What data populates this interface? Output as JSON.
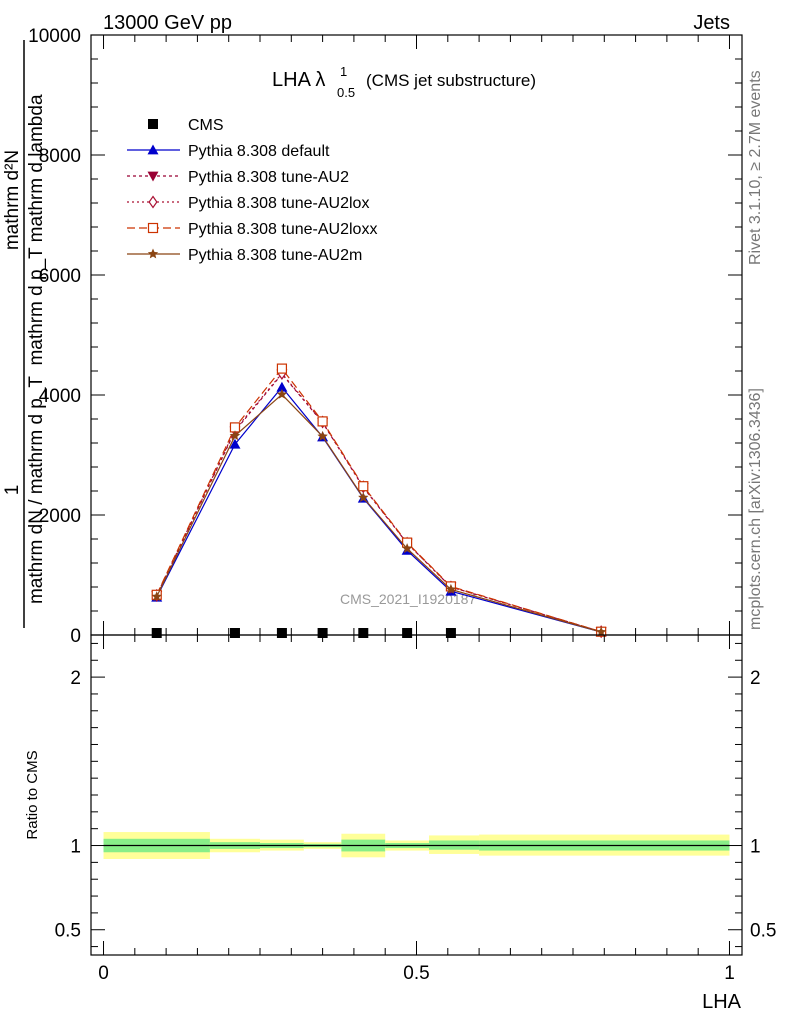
{
  "header": {
    "left": "13000 GeV pp",
    "right": "Jets"
  },
  "side_text": {
    "rivet": "Rivet 3.1.10, ≥ 2.7M events",
    "mcplots": "mcplots.cern.ch [arXiv:1306.3436]"
  },
  "upper_ylabel": {
    "numerator": "mathrm d²N",
    "denominator": "mathrm d p_T mathrm d lambda",
    "prefix_num": "1",
    "prefix_den": "mathrm dN / mathrm d p_T"
  },
  "watermark": "CMS_2021_I1920187",
  "title": {
    "main": "LHA λ",
    "sup": "1",
    "sub": "0.5",
    "suffix": "(CMS jet substructure)"
  },
  "ratio_ylabel": "Ratio to CMS",
  "xlabel": "LHA",
  "chart_data": [
    {
      "type": "line",
      "panel": "main",
      "xlim": [
        -0.02,
        1.02
      ],
      "ylim": [
        0,
        10000
      ],
      "yticks": [
        0,
        2000,
        4000,
        6000,
        8000,
        10000
      ],
      "ytick_labels": [
        "0",
        "2000",
        "4000",
        "6000",
        "8000",
        "10000"
      ],
      "legend_position": "top-left",
      "series": [
        {
          "name": "CMS",
          "style": "data",
          "x": [
            0.085,
            0.21,
            0.285,
            0.35,
            0.415,
            0.485,
            0.555
          ],
          "y": [
            0,
            0,
            0,
            0,
            0,
            0,
            0
          ]
        },
        {
          "name": "Pythia 8.308 default",
          "color": "#0000cc",
          "dash": "",
          "marker": "triangle-up",
          "x": [
            0.085,
            0.21,
            0.285,
            0.35,
            0.415,
            0.485,
            0.555,
            0.795
          ],
          "y": [
            630,
            3180,
            4130,
            3300,
            2280,
            1410,
            730,
            50
          ]
        },
        {
          "name": "Pythia 8.308 tune-AU2",
          "color": "#990033",
          "dash": "3,3",
          "marker": "triangle-down",
          "x": [
            0.085,
            0.21,
            0.285,
            0.35,
            0.415,
            0.485,
            0.555,
            0.795
          ],
          "y": [
            660,
            3400,
            4350,
            3540,
            2460,
            1530,
            800,
            55
          ]
        },
        {
          "name": "Pythia 8.308 tune-AU2lox",
          "color": "#aa1133",
          "dash": "2,3",
          "marker": "diamond",
          "x": [
            0.085,
            0.21,
            0.285,
            0.35,
            0.415,
            0.485,
            0.555,
            0.795
          ],
          "y": [
            660,
            3420,
            4360,
            3550,
            2470,
            1530,
            800,
            55
          ]
        },
        {
          "name": "Pythia 8.308 tune-AU2loxx",
          "color": "#cc3300",
          "dash": "8,4",
          "marker": "square-open",
          "x": [
            0.085,
            0.21,
            0.285,
            0.35,
            0.415,
            0.485,
            0.555,
            0.795
          ],
          "y": [
            670,
            3460,
            4440,
            3560,
            2480,
            1540,
            810,
            55
          ]
        },
        {
          "name": "Pythia 8.308 tune-AU2m",
          "color": "#8b4513",
          "dash": "",
          "marker": "star",
          "x": [
            0.085,
            0.21,
            0.285,
            0.35,
            0.415,
            0.485,
            0.555,
            0.795
          ],
          "y": [
            640,
            3320,
            4010,
            3310,
            2290,
            1440,
            760,
            50
          ]
        }
      ]
    },
    {
      "type": "area",
      "panel": "ratio",
      "xlim": [
        -0.02,
        1.02
      ],
      "ylim": [
        0.35,
        2.25
      ],
      "yticks": [
        0.5,
        1,
        2
      ],
      "ytick_labels": [
        "0.5",
        "1",
        "2"
      ],
      "xticks": [
        0,
        0.5,
        1
      ],
      "xtick_labels": [
        "0",
        "0.5",
        "1"
      ],
      "reference_line": 1,
      "bands": [
        {
          "x0": 0.0,
          "x1": 0.17,
          "yellow": [
            0.92,
            1.08
          ],
          "green": [
            0.96,
            1.04
          ]
        },
        {
          "x0": 0.17,
          "x1": 0.25,
          "yellow": [
            0.96,
            1.04
          ],
          "green": [
            0.98,
            1.02
          ]
        },
        {
          "x0": 0.25,
          "x1": 0.32,
          "yellow": [
            0.97,
            1.035
          ],
          "green": [
            0.985,
            1.015
          ]
        },
        {
          "x0": 0.32,
          "x1": 0.38,
          "yellow": [
            0.98,
            1.02
          ],
          "green": [
            0.99,
            1.01
          ]
        },
        {
          "x0": 0.38,
          "x1": 0.45,
          "yellow": [
            0.93,
            1.07
          ],
          "green": [
            0.965,
            1.035
          ]
        },
        {
          "x0": 0.45,
          "x1": 0.52,
          "yellow": [
            0.97,
            1.03
          ],
          "green": [
            0.985,
            1.015
          ]
        },
        {
          "x0": 0.52,
          "x1": 0.6,
          "yellow": [
            0.95,
            1.06
          ],
          "green": [
            0.975,
            1.03
          ]
        },
        {
          "x0": 0.6,
          "x1": 1.0,
          "yellow": [
            0.94,
            1.065
          ],
          "green": [
            0.97,
            1.03
          ]
        }
      ]
    }
  ]
}
